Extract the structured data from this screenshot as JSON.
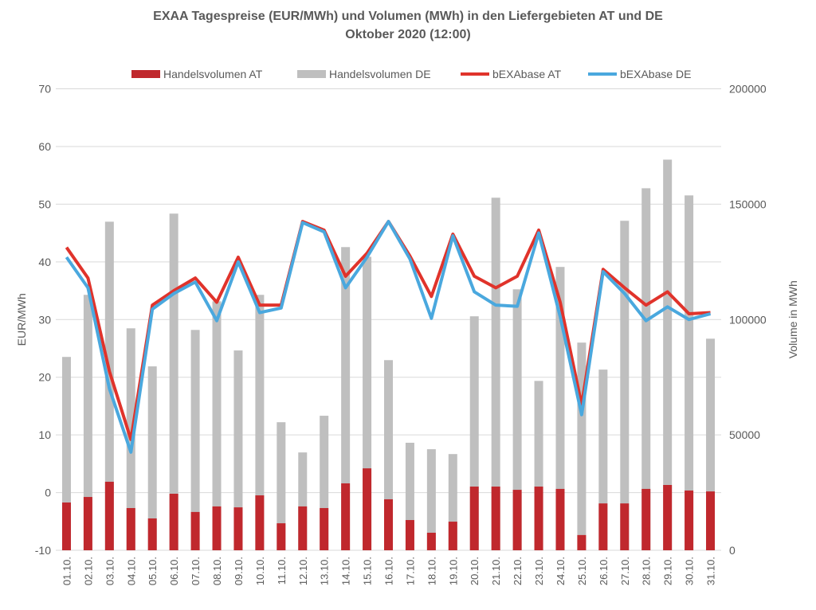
{
  "chart_data": {
    "type": "bar+line",
    "title": "EXAA Tagespreise (EUR/MWh) und Volumen (MWh) in den Liefergebieten AT und DE",
    "subtitle": "Oktober 2020 (12:00)",
    "ylabel": "EUR/MWh",
    "y2label": "Volume in MWh",
    "ylim": [
      -10,
      70
    ],
    "yticks": [
      -10,
      0,
      10,
      20,
      30,
      40,
      50,
      60,
      70
    ],
    "y2lim": [
      0,
      200000
    ],
    "y2ticks": [
      0,
      50000,
      100000,
      150000,
      200000
    ],
    "grid": true,
    "legend_position": "top",
    "categories": [
      "01.10.",
      "02.10.",
      "03.10.",
      "04.10.",
      "05.10.",
      "06.10.",
      "07.10.",
      "08.10.",
      "09.10.",
      "10.10.",
      "11.10.",
      "12.10.",
      "13.10.",
      "14.10.",
      "15.10.",
      "16.10.",
      "17.10.",
      "18.10.",
      "19.10.",
      "20.10.",
      "21.10.",
      "22.10.",
      "23.10.",
      "24.10.",
      "25.10.",
      "26.10.",
      "27.10.",
      "28.10.",
      "29.10.",
      "30.10.",
      "31.10."
    ],
    "series": [
      {
        "name": "Handelsvolumen DE",
        "type": "bar",
        "axis": "right",
        "color": "#bfbfbf",
        "values": [
          83800,
          110700,
          142400,
          96200,
          79700,
          145900,
          95500,
          107900,
          86600,
          110700,
          55500,
          42400,
          58300,
          131400,
          127200,
          82400,
          46600,
          43800,
          41700,
          101400,
          152800,
          113100,
          73400,
          122800,
          90000,
          78300,
          142800,
          156900,
          169300,
          153800,
          91700
        ]
      },
      {
        "name": "Handelsvolumen AT",
        "type": "bar",
        "axis": "right",
        "color": "#c0282d",
        "values": [
          20700,
          23100,
          29700,
          18300,
          13800,
          24500,
          16600,
          19000,
          18600,
          23800,
          11700,
          19000,
          18300,
          29000,
          35500,
          22100,
          13100,
          7600,
          12400,
          27600,
          27600,
          26200,
          27600,
          26600,
          6600,
          20300,
          20300,
          26600,
          28300,
          25900,
          25500
        ]
      },
      {
        "name": "bEXAbase AT",
        "type": "line",
        "axis": "left",
        "color": "#e0332b",
        "values": [
          42.5,
          37.2,
          21,
          9.2,
          32.5,
          35,
          37.2,
          33,
          40.8,
          32.5,
          32.5,
          47,
          45.5,
          37.5,
          41.5,
          47,
          41,
          34,
          44.8,
          37.5,
          35.5,
          37.5,
          45.5,
          33,
          15.2,
          38.7,
          35.5,
          32.5,
          34.8,
          31,
          31.2
        ]
      },
      {
        "name": "bEXAbase DE",
        "type": "line",
        "axis": "left",
        "color": "#4aa8de",
        "values": [
          40.8,
          35.5,
          18,
          7,
          31.8,
          34.5,
          36.5,
          29.8,
          40,
          31.2,
          32,
          46.8,
          45.2,
          35.5,
          40.8,
          47,
          40.5,
          30.2,
          44.5,
          34.8,
          32.5,
          32.3,
          45,
          30.5,
          13.5,
          38.3,
          34.5,
          29.8,
          32.2,
          30,
          31
        ]
      }
    ],
    "legend_order": [
      "Handelsvolumen AT",
      "Handelsvolumen DE",
      "bEXAbase AT",
      "bEXAbase DE"
    ]
  }
}
